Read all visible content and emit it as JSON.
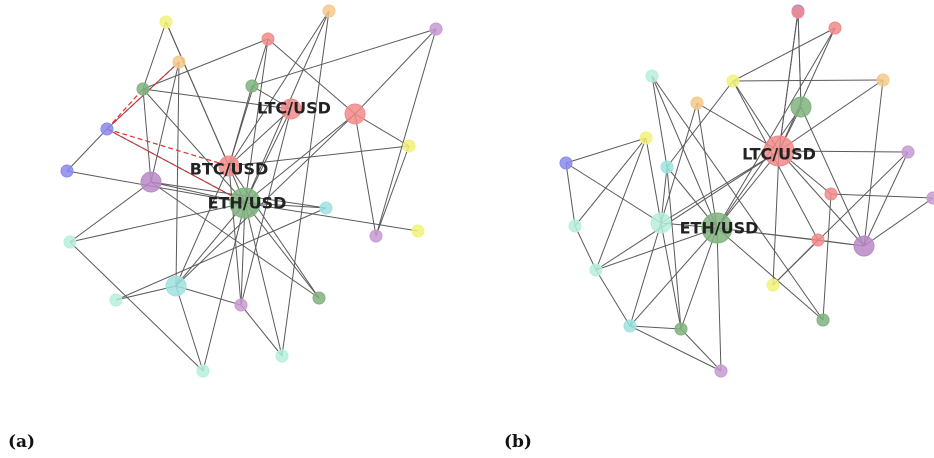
{
  "panels": [
    {
      "id": "a",
      "caption": "(a)",
      "nodes": [
        {
          "id": "a1",
          "color": "#f2f27a",
          "size": "small"
        },
        {
          "id": "a2",
          "color": "#f5c98a",
          "size": "small"
        },
        {
          "id": "a3",
          "color": "#f28b8b",
          "size": "small"
        },
        {
          "id": "a4",
          "color": "#c89ad4",
          "size": "small"
        },
        {
          "id": "a5",
          "color": "#f5c98a",
          "size": "small"
        },
        {
          "id": "a6",
          "color": "#7fb37f",
          "size": "small"
        },
        {
          "id": "a7",
          "color": "#7fb37f",
          "size": "small"
        },
        {
          "id": "a8",
          "color": "#f28b8b",
          "size": "medium",
          "label": "LTC/USD"
        },
        {
          "id": "a9",
          "color": "#f28b8b",
          "size": "medium"
        },
        {
          "id": "a10",
          "color": "#8a8af0",
          "size": "small"
        },
        {
          "id": "a11",
          "color": "#f2f27a",
          "size": "small"
        },
        {
          "id": "a12",
          "color": "#8a8af0",
          "size": "small"
        },
        {
          "id": "a13",
          "color": "#f28b8b",
          "size": "medium",
          "label": "BTC/USD"
        },
        {
          "id": "a14",
          "color": "#b88ac8",
          "size": "medium"
        },
        {
          "id": "a15",
          "color": "#7fb37f",
          "size": "large",
          "label": "ETH/USD"
        },
        {
          "id": "a16",
          "color": "#9ee3e0",
          "size": "small"
        },
        {
          "id": "a17",
          "color": "#c89ad4",
          "size": "small"
        },
        {
          "id": "a18",
          "color": "#f2f27a",
          "size": "small"
        },
        {
          "id": "a19",
          "color": "#b6f0dc",
          "size": "small"
        },
        {
          "id": "a20",
          "color": "#9ee3e0",
          "size": "medium"
        },
        {
          "id": "a21",
          "color": "#b6f0dc",
          "size": "small"
        },
        {
          "id": "a22",
          "color": "#c89ad4",
          "size": "small"
        },
        {
          "id": "a23",
          "color": "#7fb37f",
          "size": "small"
        },
        {
          "id": "a24",
          "color": "#b6f0dc",
          "size": "small"
        },
        {
          "id": "a25",
          "color": "#b6f0dc",
          "size": "small"
        }
      ],
      "edges": [
        [
          "a1",
          "a13"
        ],
        [
          "a1",
          "a6"
        ],
        [
          "a1",
          "a15"
        ],
        [
          "a3",
          "a13"
        ],
        [
          "a3",
          "a9"
        ],
        [
          "a3",
          "a6"
        ],
        [
          "a3",
          "a15"
        ],
        [
          "a5",
          "a20"
        ],
        [
          "a5",
          "a14"
        ],
        [
          "a5",
          "a10"
        ],
        [
          "a2",
          "a15"
        ],
        [
          "a2",
          "a13"
        ],
        [
          "a2",
          "a25"
        ],
        [
          "a4",
          "a9"
        ],
        [
          "a4",
          "a17"
        ],
        [
          "a4",
          "a7"
        ],
        [
          "a6",
          "a8"
        ],
        [
          "a6",
          "a15"
        ],
        [
          "a6",
          "a14"
        ],
        [
          "a7",
          "a13"
        ],
        [
          "a7",
          "a8"
        ],
        [
          "a8",
          "a13"
        ],
        [
          "a8",
          "a15"
        ],
        [
          "a8",
          "a22"
        ],
        [
          "a9",
          "a11"
        ],
        [
          "a9",
          "a15"
        ],
        [
          "a9",
          "a17"
        ],
        [
          "a9",
          "a20"
        ],
        [
          "a10",
          "a12"
        ],
        [
          "a10",
          "a15"
        ],
        [
          "a12",
          "a15"
        ],
        [
          "a14",
          "a16"
        ],
        [
          "a14",
          "a15"
        ],
        [
          "a14",
          "a19"
        ],
        [
          "a14",
          "a23"
        ],
        [
          "a15",
          "a18"
        ],
        [
          "a15",
          "a16"
        ],
        [
          "a15",
          "a20"
        ],
        [
          "a15",
          "a22"
        ],
        [
          "a15",
          "a23"
        ],
        [
          "a15",
          "a24"
        ],
        [
          "a15",
          "a25"
        ],
        [
          "a15",
          "a19"
        ],
        [
          "a13",
          "a22"
        ],
        [
          "a13",
          "a20"
        ],
        [
          "a13",
          "a23"
        ],
        [
          "a11",
          "a17"
        ],
        [
          "a11",
          "a13"
        ],
        [
          "a16",
          "a21"
        ],
        [
          "a20",
          "a21"
        ],
        [
          "a20",
          "a22"
        ],
        [
          "a20",
          "a24"
        ],
        [
          "a22",
          "a25"
        ],
        [
          "a24",
          "a19"
        ]
      ],
      "highlight_edges": [
        [
          "a10",
          "a5"
        ],
        [
          "a10",
          "a6"
        ],
        [
          "a10",
          "a13"
        ],
        [
          "a10",
          "a15"
        ]
      ]
    },
    {
      "id": "b",
      "caption": "(b)",
      "nodes": [
        {
          "id": "b1",
          "color": "#8a8af0",
          "size": "small"
        },
        {
          "id": "b2",
          "color": "#f28b8b",
          "size": "small"
        },
        {
          "id": "b3",
          "color": "#f28b8b",
          "size": "small"
        },
        {
          "id": "b4",
          "color": "#f5c98a",
          "size": "small"
        },
        {
          "id": "b5",
          "color": "#b6f0dc",
          "size": "small"
        },
        {
          "id": "b6",
          "color": "#f2f27a",
          "size": "small"
        },
        {
          "id": "b7",
          "color": "#f5c98a",
          "size": "small"
        },
        {
          "id": "b8",
          "color": "#7fb37f",
          "size": "medium"
        },
        {
          "id": "b9",
          "color": "#f2f27a",
          "size": "small"
        },
        {
          "id": "b10",
          "color": "#9ee3e0",
          "size": "small"
        },
        {
          "id": "b11",
          "color": "#f28b8b",
          "size": "large",
          "label": "LTC/USD"
        },
        {
          "id": "b12",
          "color": "#c89ad4",
          "size": "small"
        },
        {
          "id": "b13",
          "color": "#8a8af0",
          "size": "small"
        },
        {
          "id": "b14",
          "color": "#f28b8b",
          "size": "small"
        },
        {
          "id": "b15",
          "color": "#c89ad4",
          "size": "small"
        },
        {
          "id": "b16",
          "color": "#b6f0dc",
          "size": "small"
        },
        {
          "id": "b17",
          "color": "#b6f0dc",
          "size": "medium"
        },
        {
          "id": "b18",
          "color": "#7fb37f",
          "size": "large",
          "label": "ETH/USD"
        },
        {
          "id": "b19",
          "color": "#f28b8b",
          "size": "small"
        },
        {
          "id": "b20",
          "color": "#b88ac8",
          "size": "medium"
        },
        {
          "id": "b21",
          "color": "#b6f0dc",
          "size": "small"
        },
        {
          "id": "b22",
          "color": "#f2f27a",
          "size": "small"
        },
        {
          "id": "b23",
          "color": "#9ee3e0",
          "size": "small"
        },
        {
          "id": "b24",
          "color": "#7fb37f",
          "size": "small"
        },
        {
          "id": "b25",
          "color": "#7fb37f",
          "size": "small"
        },
        {
          "id": "b26",
          "color": "#c89ad4",
          "size": "small"
        }
      ],
      "edges": [
        [
          "b1",
          "b11"
        ],
        [
          "b1",
          "b8"
        ],
        [
          "b1",
          "b3"
        ],
        [
          "b2",
          "b18"
        ],
        [
          "b2",
          "b6"
        ],
        [
          "b2",
          "b11"
        ],
        [
          "b3",
          "b11"
        ],
        [
          "b3",
          "b8"
        ],
        [
          "b4",
          "b11"
        ],
        [
          "b4",
          "b20"
        ],
        [
          "b4",
          "b6"
        ],
        [
          "b5",
          "b18"
        ],
        [
          "b5",
          "b10"
        ],
        [
          "b5",
          "b24"
        ],
        [
          "b6",
          "b11"
        ],
        [
          "b6",
          "b19"
        ],
        [
          "b6",
          "b10"
        ],
        [
          "b7",
          "b11"
        ],
        [
          "b7",
          "b17"
        ],
        [
          "b7",
          "b18"
        ],
        [
          "b8",
          "b11"
        ],
        [
          "b8",
          "b20"
        ],
        [
          "b8",
          "b18"
        ],
        [
          "b9",
          "b17"
        ],
        [
          "b9",
          "b13"
        ],
        [
          "b9",
          "b16"
        ],
        [
          "b9",
          "b21"
        ],
        [
          "b10",
          "b17"
        ],
        [
          "b10",
          "b18"
        ],
        [
          "b10",
          "b25"
        ],
        [
          "b11",
          "b12"
        ],
        [
          "b11",
          "b14"
        ],
        [
          "b11",
          "b18"
        ],
        [
          "b11",
          "b20"
        ],
        [
          "b11",
          "b17"
        ],
        [
          "b11",
          "b21"
        ],
        [
          "b11",
          "b22"
        ],
        [
          "b12",
          "b20"
        ],
        [
          "b12",
          "b22"
        ],
        [
          "b13",
          "b16"
        ],
        [
          "b13",
          "b17"
        ],
        [
          "b14",
          "b15"
        ],
        [
          "b14",
          "b24"
        ],
        [
          "b15",
          "b20"
        ],
        [
          "b16",
          "b21"
        ],
        [
          "b17",
          "b18"
        ],
        [
          "b17",
          "b23"
        ],
        [
          "b17",
          "b25"
        ],
        [
          "b18",
          "b19"
        ],
        [
          "b18",
          "b20"
        ],
        [
          "b18",
          "b23"
        ],
        [
          "b18",
          "b25"
        ],
        [
          "b18",
          "b26"
        ],
        [
          "b18",
          "b24"
        ],
        [
          "b18",
          "b21"
        ],
        [
          "b19",
          "b20"
        ],
        [
          "b19",
          "b22"
        ],
        [
          "b21",
          "b23"
        ],
        [
          "b23",
          "b25"
        ],
        [
          "b23",
          "b26"
        ],
        [
          "b25",
          "b26"
        ]
      ],
      "highlight_edges": []
    }
  ]
}
